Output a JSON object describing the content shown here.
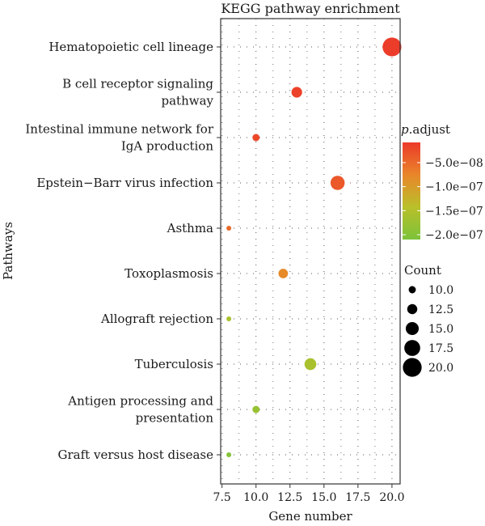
{
  "chart_data": {
    "type": "scatter",
    "title": "KEGG pathway enrichment",
    "xlabel": "Gene number",
    "ylabel": "Pathways",
    "xlim": [
      7.4,
      20.6
    ],
    "xticks": [
      "7.5",
      "10.0",
      "12.5",
      "15.0",
      "17.5",
      "20.0"
    ],
    "grid": "dotted",
    "categories": [
      [
        "Hematopoietic cell lineage"
      ],
      [
        "B cell receptor signaling",
        "pathway"
      ],
      [
        "Intestinal immune network for",
        "IgA production"
      ],
      [
        "Epstein−Barr virus infection"
      ],
      [
        "Asthma"
      ],
      [
        "Toxoplasmosis"
      ],
      [
        "Allograft rejection"
      ],
      [
        "Tuberculosis"
      ],
      [
        "Antigen processing and",
        "presentation"
      ],
      [
        "Graft versus host disease"
      ]
    ],
    "points": [
      {
        "gene_number": 20,
        "count": 20,
        "p_adjust": 1e-08
      },
      {
        "gene_number": 13,
        "count": 13,
        "p_adjust": 1.5e-08
      },
      {
        "gene_number": 10,
        "count": 10,
        "p_adjust": 2e-08
      },
      {
        "gene_number": 16,
        "count": 16,
        "p_adjust": 3.5e-08
      },
      {
        "gene_number": 8,
        "count": 8,
        "p_adjust": 5e-08
      },
      {
        "gene_number": 12,
        "count": 12,
        "p_adjust": 8e-08
      },
      {
        "gene_number": 8,
        "count": 8,
        "p_adjust": 1.6e-07
      },
      {
        "gene_number": 14,
        "count": 14,
        "p_adjust": 1.6e-07
      },
      {
        "gene_number": 10,
        "count": 10,
        "p_adjust": 1.8e-07
      },
      {
        "gene_number": 8,
        "count": 8,
        "p_adjust": 2e-07
      }
    ],
    "color_legend": {
      "title_italic": "p",
      "title_rest": ".adjust",
      "labels": [
        "−5.0e−08",
        "−1.0e−07",
        "−1.5e−07",
        "−2.0e−07"
      ],
      "tick_values": [
        5e-08,
        1e-07,
        1.5e-07,
        2e-07
      ],
      "range": [
        8e-09,
        2.1e-07
      ],
      "colors": [
        "#ec3a2a",
        "#e9862a",
        "#b9c02a",
        "#7cc23a"
      ]
    },
    "size_legend": {
      "title": "Count",
      "labels": [
        "10.0",
        "12.5",
        "15.0",
        "17.5",
        "20.0"
      ],
      "values": [
        10,
        12.5,
        15,
        17.5,
        20
      ]
    }
  }
}
